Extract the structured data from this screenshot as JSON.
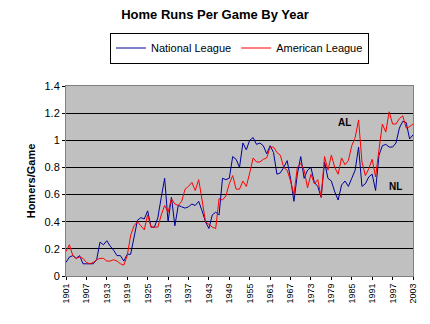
{
  "chart_data": {
    "type": "line",
    "title": "Home Runs Per Game By Year",
    "y_label": "Homers/Game",
    "x": [
      1901,
      1902,
      1903,
      1904,
      1905,
      1906,
      1907,
      1908,
      1909,
      1910,
      1911,
      1912,
      1913,
      1914,
      1915,
      1916,
      1917,
      1918,
      1919,
      1920,
      1921,
      1922,
      1923,
      1924,
      1925,
      1926,
      1927,
      1928,
      1929,
      1930,
      1931,
      1932,
      1933,
      1934,
      1935,
      1936,
      1937,
      1938,
      1939,
      1940,
      1941,
      1942,
      1943,
      1944,
      1945,
      1946,
      1947,
      1948,
      1949,
      1950,
      1951,
      1952,
      1953,
      1954,
      1955,
      1956,
      1957,
      1958,
      1959,
      1960,
      1961,
      1962,
      1963,
      1964,
      1965,
      1966,
      1967,
      1968,
      1969,
      1970,
      1971,
      1972,
      1973,
      1974,
      1975,
      1976,
      1977,
      1978,
      1979,
      1980,
      1981,
      1982,
      1983,
      1984,
      1985,
      1986,
      1987,
      1988,
      1989,
      1990,
      1991,
      1992,
      1993,
      1994,
      1995,
      1996,
      1997,
      1998,
      1999,
      2000,
      2001,
      2002,
      2003
    ],
    "series": [
      {
        "name": "National League",
        "color": "#000099",
        "values": [
          0.1,
          0.14,
          0.15,
          0.13,
          0.15,
          0.09,
          0.09,
          0.09,
          0.09,
          0.12,
          0.25,
          0.23,
          0.26,
          0.22,
          0.19,
          0.15,
          0.15,
          0.11,
          0.16,
          0.16,
          0.3,
          0.41,
          0.43,
          0.42,
          0.48,
          0.36,
          0.36,
          0.43,
          0.58,
          0.72,
          0.4,
          0.58,
          0.37,
          0.52,
          0.51,
          0.5,
          0.51,
          0.53,
          0.52,
          0.55,
          0.48,
          0.4,
          0.35,
          0.45,
          0.47,
          0.45,
          0.72,
          0.71,
          0.72,
          0.88,
          0.86,
          0.8,
          0.98,
          0.93,
          1.0,
          1.02,
          0.97,
          0.98,
          0.96,
          0.9,
          0.96,
          0.91,
          0.75,
          0.76,
          0.8,
          0.85,
          0.72,
          0.55,
          0.75,
          0.88,
          0.72,
          0.78,
          0.8,
          0.69,
          0.66,
          0.58,
          0.84,
          0.72,
          0.7,
          0.62,
          0.56,
          0.67,
          0.7,
          0.66,
          0.72,
          0.78,
          0.95,
          0.66,
          0.68,
          0.73,
          0.75,
          0.63,
          0.89,
          0.96,
          0.97,
          0.95,
          0.95,
          0.98,
          1.09,
          1.14,
          1.13,
          1.01,
          1.04
        ]
      },
      {
        "name": "American League",
        "color": "#ff0000",
        "values": [
          0.18,
          0.23,
          0.15,
          0.13,
          0.14,
          0.13,
          0.1,
          0.09,
          0.1,
          0.12,
          0.13,
          0.13,
          0.11,
          0.11,
          0.12,
          0.11,
          0.09,
          0.08,
          0.15,
          0.3,
          0.37,
          0.4,
          0.37,
          0.34,
          0.45,
          0.36,
          0.36,
          0.36,
          0.45,
          0.52,
          0.47,
          0.57,
          0.53,
          0.52,
          0.55,
          0.64,
          0.66,
          0.69,
          0.63,
          0.71,
          0.56,
          0.4,
          0.38,
          0.36,
          0.35,
          0.57,
          0.56,
          0.59,
          0.68,
          0.74,
          0.64,
          0.64,
          0.7,
          0.66,
          0.76,
          0.87,
          0.84,
          0.84,
          0.86,
          0.87,
          0.95,
          0.95,
          0.91,
          0.89,
          0.8,
          0.78,
          0.7,
          0.6,
          0.8,
          0.83,
          0.78,
          0.65,
          0.75,
          0.68,
          0.71,
          0.58,
          0.88,
          0.78,
          0.89,
          0.8,
          0.75,
          0.87,
          0.82,
          0.85,
          0.96,
          1.02,
          1.15,
          0.84,
          0.74,
          0.79,
          0.86,
          0.73,
          0.93,
          1.12,
          1.06,
          1.21,
          1.12,
          1.12,
          1.16,
          1.18,
          1.09,
          1.1,
          1.12
        ]
      }
    ],
    "annotations": [
      {
        "text": "AL",
        "x": 1983,
        "y": 1.13
      },
      {
        "text": "NL",
        "x": 1998,
        "y": 0.66
      }
    ],
    "xlim": [
      1901,
      2003
    ],
    "xticks": [
      1901,
      1907,
      1913,
      1919,
      1925,
      1931,
      1937,
      1943,
      1949,
      1955,
      1961,
      1967,
      1973,
      1979,
      1985,
      1991,
      1997,
      2003
    ],
    "ylim": [
      0,
      1.4
    ],
    "yticks": [
      0,
      0.2,
      0.4,
      0.6,
      0.8,
      1,
      1.2,
      1.4
    ],
    "grid": true,
    "legend": "top"
  }
}
